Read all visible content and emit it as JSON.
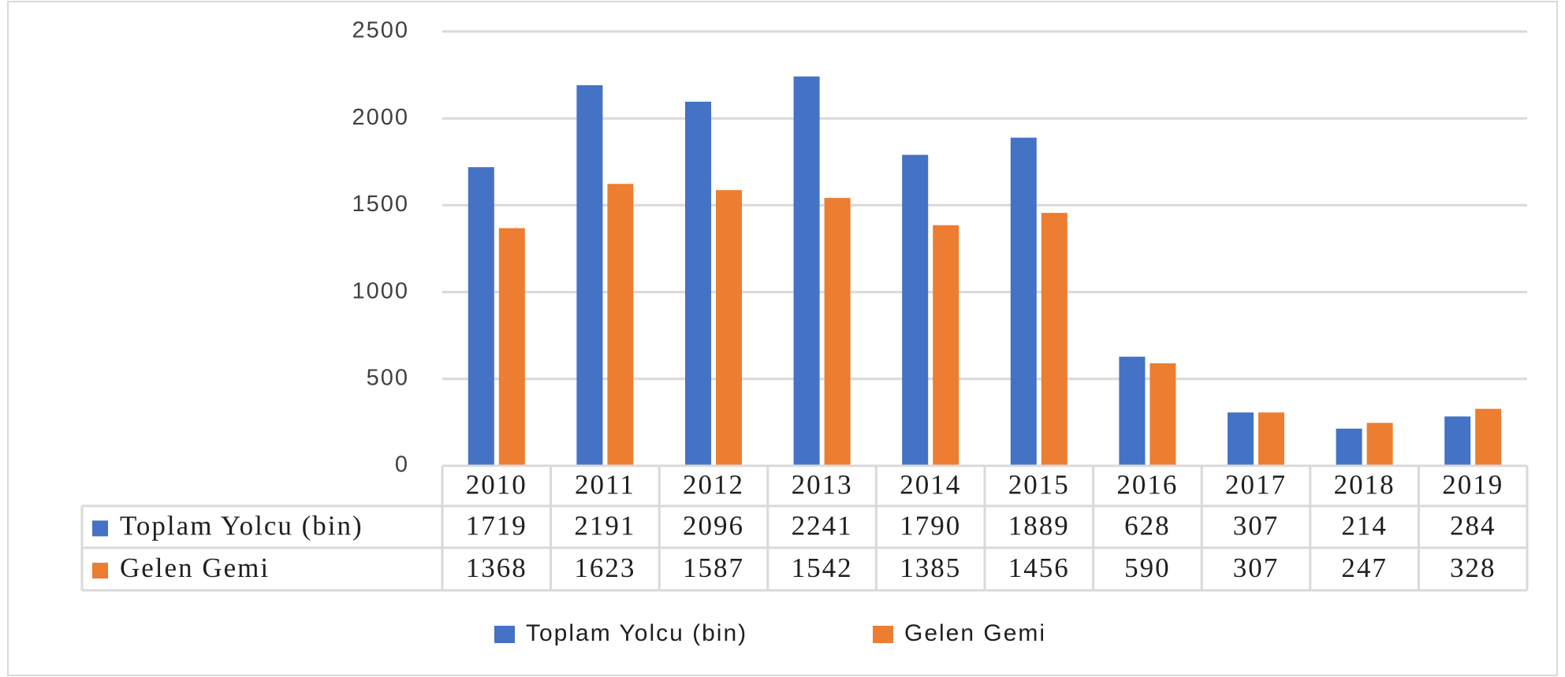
{
  "chart_data": {
    "type": "bar",
    "categories": [
      "2010",
      "2011",
      "2012",
      "2013",
      "2014",
      "2015",
      "2016",
      "2017",
      "2018",
      "2019"
    ],
    "series": [
      {
        "name": "Toplam Yolcu (bin)",
        "color": "#4472c4",
        "values": [
          1719,
          2191,
          2096,
          2241,
          1790,
          1889,
          628,
          307,
          214,
          284
        ]
      },
      {
        "name": "Gelen Gemi",
        "color": "#ed7d31",
        "values": [
          1368,
          1623,
          1587,
          1542,
          1385,
          1456,
          590,
          307,
          247,
          328
        ]
      }
    ],
    "ylim": [
      0,
      2500
    ],
    "yticks": [
      0,
      500,
      1000,
      1500,
      2000,
      2500
    ],
    "grid": true,
    "legend": "bottom"
  }
}
